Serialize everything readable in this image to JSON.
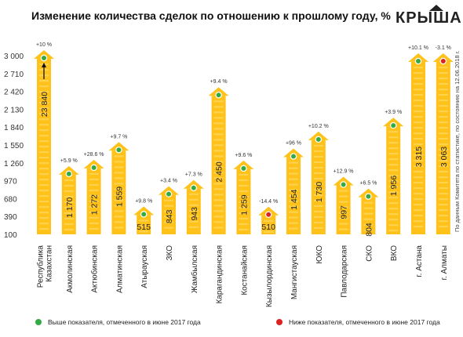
{
  "header": {
    "title": "Изменение количества сделок по отношению к прошлому году, %",
    "brand": "КРЫША"
  },
  "side_note": "По данным Комитета по статистике, по состоянию на 12.06.2018 г.",
  "legend": {
    "above": {
      "label": "Выше показателя, отмеченного в июне 2017 года",
      "color": "#33aa44"
    },
    "below": {
      "label": "Ниже показателя, отмеченного в июне 2017 года",
      "color": "#dd2222"
    }
  },
  "colors": {
    "bar": "#ffc21a",
    "bar_light": "#ffe07a"
  },
  "chart_data": {
    "type": "bar",
    "title": "Изменение количества сделок по отношению к прошлому году, %",
    "y_ticks": [
      "3 000",
      "2 710",
      "2 420",
      "2 130",
      "1 840",
      "1 550",
      "1 260",
      "970",
      "680",
      "390",
      "100"
    ],
    "ylim": [
      100,
      3000
    ],
    "categories": [
      "Республика Казахстан",
      "Акмолинская",
      "Актюбинская",
      "Алматинская",
      "Атырауская",
      "ЗКО",
      "Жамбылская",
      "Карагандинская",
      "Костанайская",
      "Кызылординская",
      "Мангистауская",
      "ЮКО",
      "Павлодарская",
      "СКО",
      "ВКО",
      "г. Астана",
      "г. Алматы"
    ],
    "values": [
      23840,
      1170,
      1272,
      1559,
      515,
      843,
      943,
      2450,
      1259,
      510,
      1454,
      1730,
      997,
      804,
      1956,
      3315,
      3063
    ],
    "value_labels": [
      "23 840",
      "1 170",
      "1 272",
      "1 559",
      "515",
      "843",
      "943",
      "2 450",
      "1 259",
      "510",
      "1 454",
      "1 730",
      "997",
      "804",
      "1 956",
      "3 315",
      "3 063"
    ],
    "changes": [
      "+10 %",
      "+5.9 %",
      "+28.6 %",
      "+9.7 %",
      "+9.8 %",
      "+3.4 %",
      "+7.3 %",
      "+9.4 %",
      "+9.6 %",
      "-14.4 %",
      "+96 %",
      "+10.2 %",
      "+12.9 %",
      "+6.5 %",
      "+3.9 %",
      "+10.1 %",
      "-3.1 %"
    ],
    "indicators": [
      "above",
      "above",
      "above",
      "above",
      "above",
      "above",
      "above",
      "above",
      "above",
      "below",
      "above",
      "above",
      "above",
      "above",
      "above",
      "above",
      "below"
    ],
    "truncated": [
      true,
      false,
      false,
      false,
      false,
      false,
      false,
      false,
      false,
      false,
      false,
      false,
      false,
      false,
      false,
      false,
      false
    ]
  }
}
